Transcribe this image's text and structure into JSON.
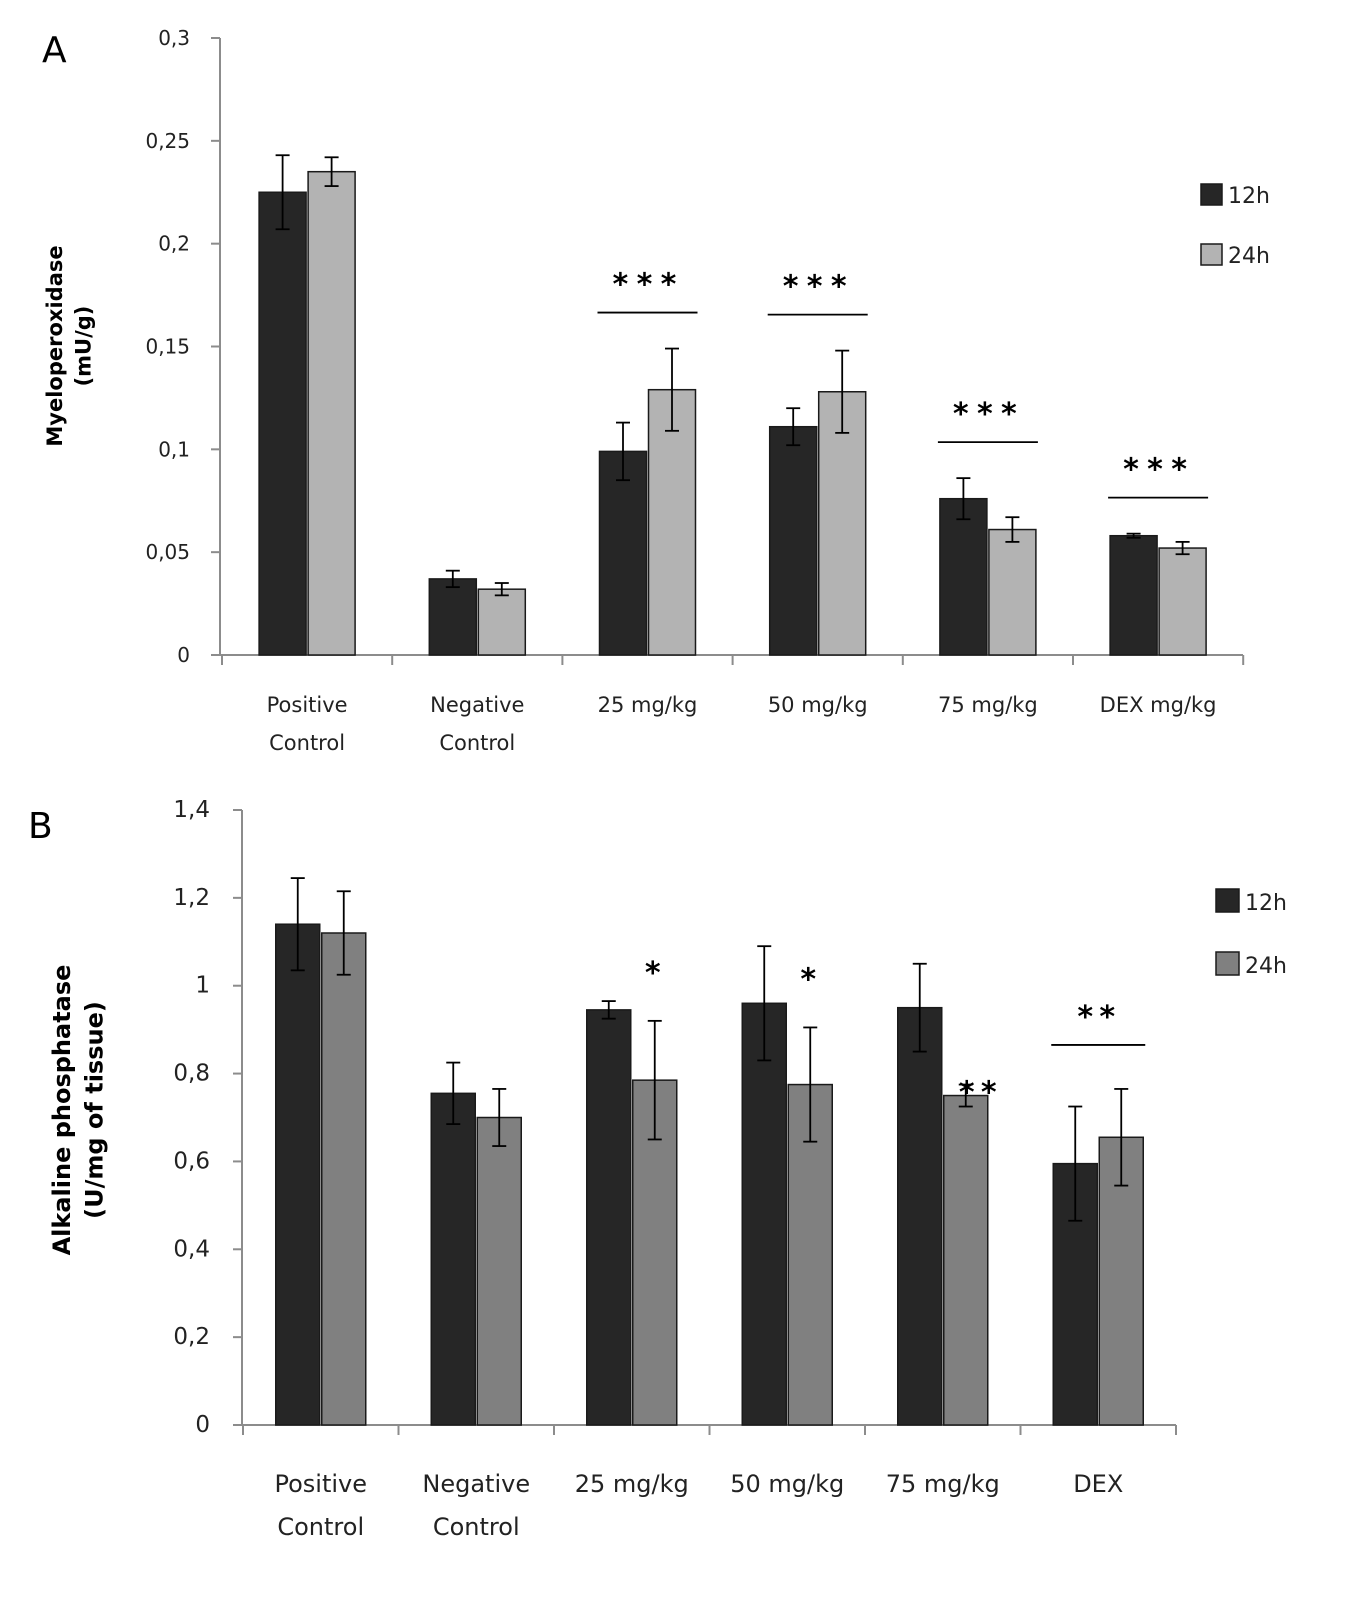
{
  "chart_data": [
    {
      "type": "bar",
      "panel": "A",
      "ylabel_line1": "Myeloperoxidase",
      "ylabel_line2": "(mU/g)",
      "ylim": [
        0,
        0.3
      ],
      "yticks": [
        "0",
        "0,05",
        "0,1",
        "0,15",
        "0,2",
        "0,25",
        "0,3"
      ],
      "categories": [
        [
          "Positive",
          "Control"
        ],
        [
          "Negative",
          "Control"
        ],
        [
          "25 mg/kg"
        ],
        [
          "50 mg/kg"
        ],
        [
          "75 mg/kg"
        ],
        [
          "DEX mg/kg"
        ]
      ],
      "series": [
        {
          "name": "12h",
          "color": "#262626",
          "values": [
            0.225,
            0.037,
            0.099,
            0.111,
            0.076,
            0.058
          ],
          "errors": [
            0.018,
            0.004,
            0.014,
            0.009,
            0.01,
            0.001
          ]
        },
        {
          "name": "24h",
          "color": "#b3b3b3",
          "values": [
            0.235,
            0.032,
            0.129,
            0.128,
            0.061,
            0.052
          ],
          "errors": [
            0.007,
            0.003,
            0.02,
            0.02,
            0.006,
            0.003
          ]
        }
      ],
      "significance": [
        {
          "category": 2,
          "label": "***",
          "bracket": true
        },
        {
          "category": 3,
          "label": "***",
          "bracket": true
        },
        {
          "category": 4,
          "label": "***",
          "bracket": true
        },
        {
          "category": 5,
          "label": "***",
          "bracket": true
        }
      ]
    },
    {
      "type": "bar",
      "panel": "B",
      "ylabel_line1": "Alkaline phosphatase",
      "ylabel_line2": "(U/mg of tissue)",
      "ylim": [
        0,
        1.4
      ],
      "yticks": [
        "0",
        "0,2",
        "0,4",
        "0,6",
        "0,8",
        "1",
        "1,2",
        "1,4"
      ],
      "categories": [
        [
          "Positive",
          "Control"
        ],
        [
          "Negative",
          "Control"
        ],
        [
          "25 mg/kg"
        ],
        [
          "50 mg/kg"
        ],
        [
          "75 mg/kg"
        ],
        [
          "DEX"
        ]
      ],
      "series": [
        {
          "name": "12h",
          "color": "#262626",
          "values": [
            1.14,
            0.755,
            0.945,
            0.96,
            0.95,
            0.595
          ],
          "errors": [
            0.105,
            0.07,
            0.02,
            0.13,
            0.1,
            0.13
          ]
        },
        {
          "name": "24h",
          "color": "#808080",
          "values": [
            1.12,
            0.7,
            0.785,
            0.775,
            0.75,
            0.655
          ],
          "errors": [
            0.095,
            0.065,
            0.135,
            0.13,
            0.025,
            0.11
          ]
        }
      ],
      "significance": [
        {
          "category": 2,
          "label": "*",
          "bracket": false
        },
        {
          "category": 3,
          "label": "*",
          "bracket": false
        },
        {
          "category": 4,
          "label": "**",
          "bracket": false
        },
        {
          "category": 5,
          "label": "**",
          "bracket": true
        }
      ]
    }
  ]
}
